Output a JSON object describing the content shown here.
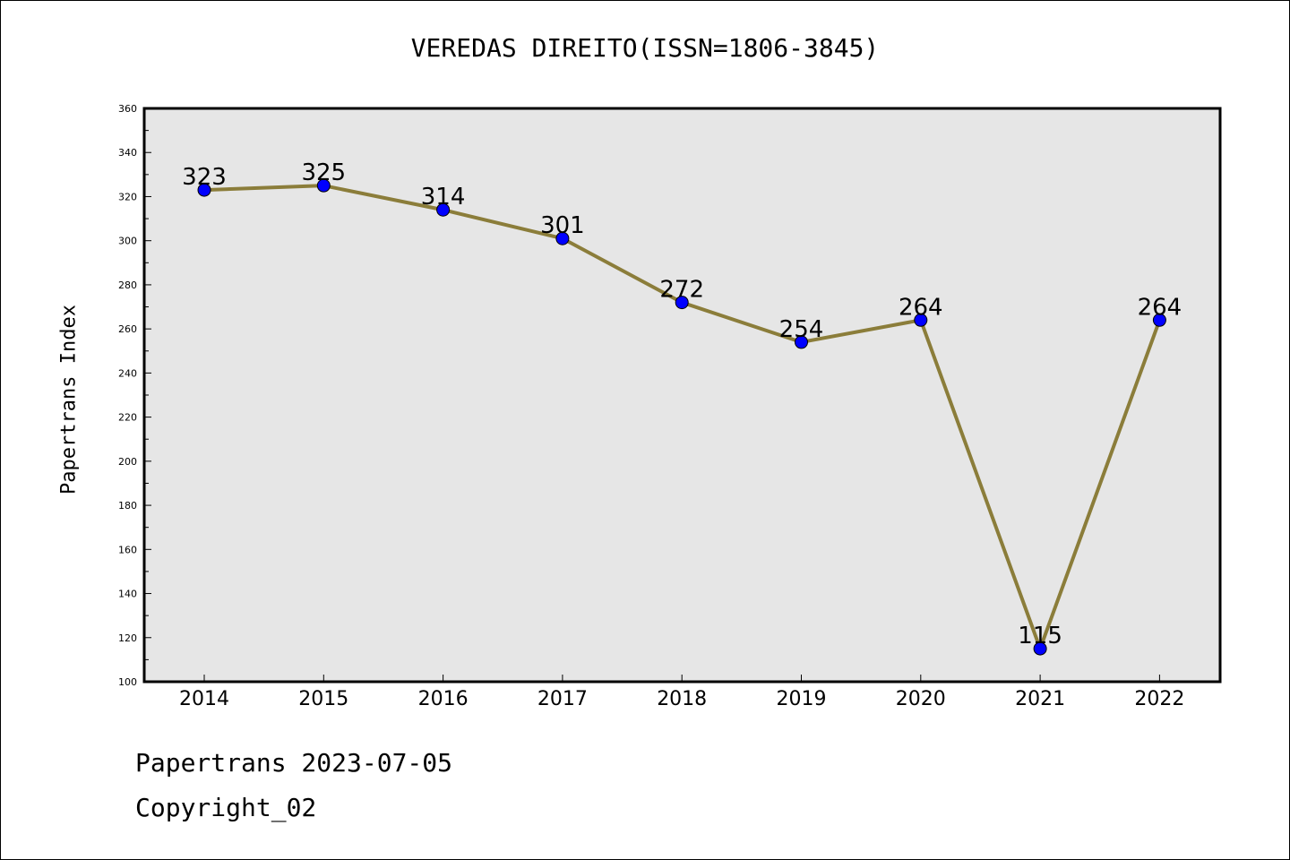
{
  "chart_data": {
    "type": "line",
    "title": "VEREDAS DIREITO(ISSN=1806-3845)",
    "xlabel": "",
    "ylabel": "Papertrans Index",
    "categories": [
      "2014",
      "2015",
      "2016",
      "2017",
      "2018",
      "2019",
      "2020",
      "2021",
      "2022"
    ],
    "values": [
      323,
      325,
      314,
      301,
      272,
      254,
      264,
      115,
      264
    ],
    "ylim": [
      100,
      360
    ],
    "yticks": [
      100,
      120,
      140,
      160,
      180,
      200,
      220,
      240,
      260,
      280,
      300,
      320,
      340,
      360
    ],
    "grid": false,
    "colors": {
      "line": "#8b7d3a",
      "marker": "#0000ff",
      "plot_bg": "#e6e6e6"
    }
  },
  "footer": {
    "line1": "Papertrans 2023-07-05",
    "line2": "Copyright_02"
  }
}
